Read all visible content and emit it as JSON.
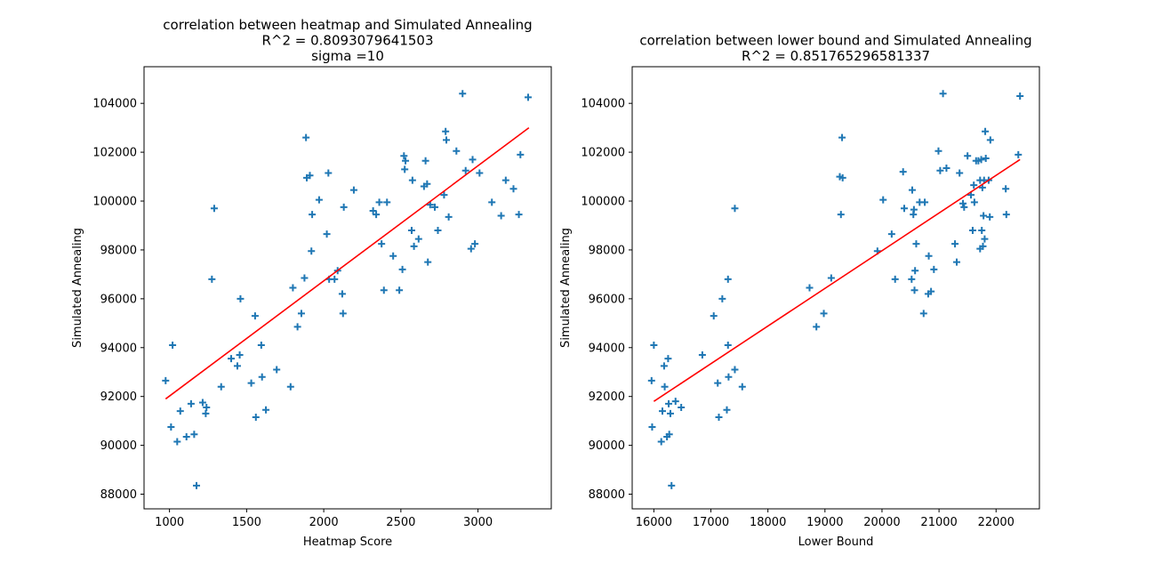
{
  "chart_data": [
    {
      "type": "scatter",
      "title_lines": [
        "correlation between heatmap and Simulated Annealing",
        "R^2 = 0.8093079641503",
        "sigma =10"
      ],
      "xlabel": "Heatmap Score",
      "ylabel": "Simulated Annealing",
      "xlim": [
        835,
        3475
      ],
      "ylim": [
        87400,
        105500
      ],
      "xticks": [
        1000,
        1500,
        2000,
        2500,
        3000
      ],
      "yticks": [
        88000,
        90000,
        92000,
        94000,
        96000,
        98000,
        100000,
        102000,
        104000
      ],
      "grid": false,
      "marker_color": "#1f77b4",
      "fit_color": "#ff0000",
      "fit_line": {
        "x": [
          975,
          3330
        ],
        "y": [
          91900,
          103000
        ]
      },
      "points": [
        [
          975,
          92650
        ],
        [
          1010,
          90750
        ],
        [
          1020,
          94100
        ],
        [
          1050,
          90150
        ],
        [
          1070,
          91400
        ],
        [
          1110,
          90350
        ],
        [
          1140,
          91700
        ],
        [
          1160,
          90450
        ],
        [
          1175,
          88350
        ],
        [
          1215,
          91750
        ],
        [
          1235,
          91300
        ],
        [
          1240,
          91550
        ],
        [
          1275,
          96800
        ],
        [
          1290,
          99700
        ],
        [
          1335,
          92400
        ],
        [
          1400,
          93550
        ],
        [
          1440,
          93250
        ],
        [
          1455,
          93700
        ],
        [
          1460,
          96000
        ],
        [
          1530,
          92550
        ],
        [
          1555,
          95300
        ],
        [
          1560,
          91150
        ],
        [
          1595,
          94100
        ],
        [
          1600,
          92800
        ],
        [
          1625,
          91450
        ],
        [
          1695,
          93100
        ],
        [
          1785,
          92400
        ],
        [
          1800,
          96450
        ],
        [
          1830,
          94850
        ],
        [
          1855,
          95400
        ],
        [
          1875,
          96850
        ],
        [
          1885,
          102600
        ],
        [
          1890,
          100950
        ],
        [
          1910,
          101050
        ],
        [
          1920,
          97950
        ],
        [
          1925,
          99450
        ],
        [
          1970,
          100050
        ],
        [
          2020,
          98650
        ],
        [
          2030,
          101150
        ],
        [
          2035,
          96800
        ],
        [
          2070,
          96800
        ],
        [
          2090,
          97150
        ],
        [
          2120,
          96200
        ],
        [
          2125,
          95400
        ],
        [
          2130,
          99750
        ],
        [
          2195,
          100450
        ],
        [
          2320,
          99600
        ],
        [
          2340,
          99450
        ],
        [
          2360,
          99950
        ],
        [
          2375,
          98250
        ],
        [
          2390,
          96350
        ],
        [
          2410,
          99950
        ],
        [
          2450,
          97750
        ],
        [
          2490,
          96350
        ],
        [
          2510,
          97200
        ],
        [
          2520,
          101850
        ],
        [
          2525,
          101300
        ],
        [
          2530,
          101650
        ],
        [
          2570,
          98800
        ],
        [
          2575,
          100850
        ],
        [
          2585,
          98150
        ],
        [
          2615,
          98450
        ],
        [
          2650,
          100600
        ],
        [
          2660,
          101650
        ],
        [
          2670,
          100700
        ],
        [
          2675,
          97500
        ],
        [
          2690,
          99850
        ],
        [
          2720,
          99750
        ],
        [
          2740,
          98800
        ],
        [
          2780,
          100250
        ],
        [
          2790,
          102850
        ],
        [
          2795,
          102500
        ],
        [
          2810,
          99350
        ],
        [
          2860,
          102050
        ],
        [
          2900,
          104400
        ],
        [
          2920,
          101250
        ],
        [
          2955,
          98050
        ],
        [
          2965,
          101700
        ],
        [
          2980,
          98250
        ],
        [
          3010,
          101150
        ],
        [
          3090,
          99950
        ],
        [
          3150,
          99400
        ],
        [
          3180,
          100850
        ],
        [
          3230,
          100500
        ],
        [
          3265,
          99450
        ],
        [
          3275,
          101900
        ],
        [
          3325,
          104250
        ]
      ]
    },
    {
      "type": "scatter",
      "title_lines": [
        "correlation between lower bound and Simulated Annealing",
        "R^2 = 0.851765296581337"
      ],
      "xlabel": "Lower Bound",
      "ylabel": "Simulated Annealing",
      "xlim": [
        15620,
        22760
      ],
      "ylim": [
        87400,
        105500
      ],
      "xticks": [
        16000,
        17000,
        18000,
        19000,
        20000,
        21000,
        22000
      ],
      "yticks": [
        88000,
        90000,
        92000,
        94000,
        96000,
        98000,
        100000,
        102000,
        104000
      ],
      "grid": false,
      "marker_color": "#1f77b4",
      "fit_color": "#ff0000",
      "fit_line": {
        "x": [
          16000,
          22420
        ],
        "y": [
          91800,
          101700
        ]
      },
      "points": [
        [
          15960,
          92650
        ],
        [
          15970,
          90750
        ],
        [
          16000,
          94100
        ],
        [
          16130,
          90150
        ],
        [
          16150,
          91400
        ],
        [
          16180,
          93250
        ],
        [
          16190,
          92400
        ],
        [
          16230,
          90350
        ],
        [
          16250,
          93550
        ],
        [
          16260,
          91700
        ],
        [
          16270,
          90450
        ],
        [
          16290,
          91300
        ],
        [
          16310,
          88350
        ],
        [
          16380,
          91800
        ],
        [
          16480,
          91550
        ],
        [
          16850,
          93700
        ],
        [
          17050,
          95300
        ],
        [
          17120,
          92550
        ],
        [
          17140,
          91150
        ],
        [
          17200,
          96000
        ],
        [
          17280,
          91450
        ],
        [
          17300,
          94100
        ],
        [
          17300,
          96800
        ],
        [
          17310,
          92800
        ],
        [
          17420,
          93100
        ],
        [
          17420,
          99700
        ],
        [
          17550,
          92400
        ],
        [
          18730,
          96450
        ],
        [
          18850,
          94850
        ],
        [
          18980,
          95400
        ],
        [
          19110,
          96850
        ],
        [
          19260,
          101000
        ],
        [
          19280,
          99450
        ],
        [
          19300,
          102600
        ],
        [
          19310,
          100950
        ],
        [
          19920,
          97950
        ],
        [
          20020,
          100050
        ],
        [
          20170,
          98650
        ],
        [
          20230,
          96800
        ],
        [
          20370,
          101200
        ],
        [
          20390,
          99700
        ],
        [
          20520,
          96800
        ],
        [
          20530,
          100450
        ],
        [
          20550,
          99450
        ],
        [
          20560,
          99650
        ],
        [
          20570,
          96350
        ],
        [
          20580,
          97150
        ],
        [
          20600,
          98250
        ],
        [
          20660,
          99950
        ],
        [
          20730,
          95400
        ],
        [
          20750,
          99950
        ],
        [
          20810,
          96200
        ],
        [
          20820,
          97750
        ],
        [
          20860,
          96300
        ],
        [
          20910,
          97200
        ],
        [
          20990,
          102050
        ],
        [
          21020,
          101250
        ],
        [
          21070,
          104400
        ],
        [
          21130,
          101350
        ],
        [
          21280,
          98250
        ],
        [
          21310,
          97500
        ],
        [
          21360,
          101150
        ],
        [
          21420,
          99900
        ],
        [
          21440,
          99750
        ],
        [
          21500,
          101850
        ],
        [
          21560,
          100250
        ],
        [
          21590,
          98800
        ],
        [
          21610,
          100650
        ],
        [
          21620,
          99950
        ],
        [
          21650,
          101650
        ],
        [
          21690,
          101650
        ],
        [
          21720,
          98050
        ],
        [
          21720,
          100850
        ],
        [
          21740,
          101700
        ],
        [
          21750,
          98800
        ],
        [
          21760,
          100550
        ],
        [
          21770,
          98150
        ],
        [
          21780,
          99400
        ],
        [
          21790,
          100850
        ],
        [
          21800,
          98450
        ],
        [
          21810,
          102850
        ],
        [
          21820,
          101750
        ],
        [
          21870,
          100850
        ],
        [
          21890,
          99350
        ],
        [
          21900,
          102500
        ],
        [
          22170,
          100500
        ],
        [
          22180,
          99450
        ],
        [
          22390,
          101900
        ],
        [
          22420,
          104300
        ]
      ]
    }
  ]
}
